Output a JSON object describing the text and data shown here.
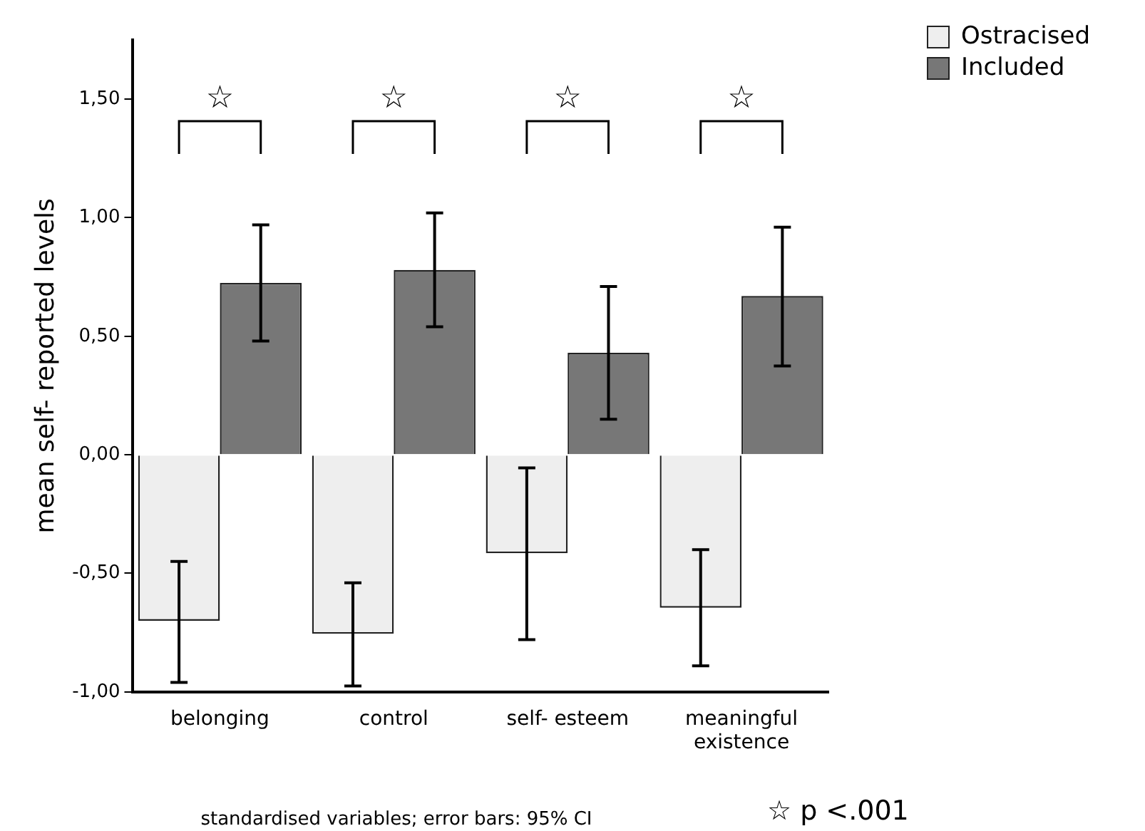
{
  "chart_data": {
    "type": "bar",
    "ylabel": "mean self- reported levels",
    "categories": [
      "belonging",
      "control",
      "self- esteem",
      "meaningful existence"
    ],
    "series": [
      {
        "name": "Ostracised",
        "color": "#eeeeee",
        "values": [
          -0.7,
          -0.755,
          -0.415,
          -0.645
        ],
        "errors": [
          [
            -0.96,
            -0.45
          ],
          [
            -0.975,
            -0.54
          ],
          [
            -0.78,
            -0.055
          ],
          [
            -0.89,
            -0.4
          ]
        ]
      },
      {
        "name": "Included",
        "color": "#777777",
        "values": [
          0.725,
          0.78,
          0.43,
          0.67
        ],
        "errors": [
          [
            0.48,
            0.97
          ],
          [
            0.54,
            1.02
          ],
          [
            0.15,
            0.71
          ],
          [
            0.375,
            0.96
          ]
        ]
      }
    ],
    "ylim": [
      -1,
      1.75
    ],
    "yticks": [
      {
        "value": -1,
        "label": "-1,00"
      },
      {
        "value": -0.5,
        "label": "-0,50"
      },
      {
        "value": 0,
        "label": "0,00"
      },
      {
        "value": 0.5,
        "label": "0,50"
      },
      {
        "value": 1,
        "label": "1,00"
      },
      {
        "value": 1.5,
        "label": "1,50"
      }
    ],
    "legend": "top right",
    "grid": false,
    "annotations": [
      "☆",
      "☆",
      "☆",
      "☆",
      "standardised variables; error bars: 95% CI",
      "☆ p <.001"
    ]
  }
}
